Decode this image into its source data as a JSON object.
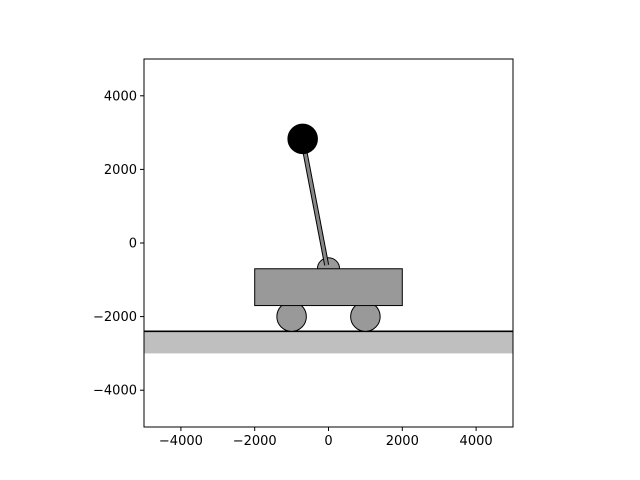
{
  "axes": {
    "xlim": [
      -5000,
      5000
    ],
    "ylim": [
      -5000,
      5000
    ],
    "x_ticks": [
      {
        "value": -4000,
        "label": "−4000"
      },
      {
        "value": -2000,
        "label": "−2000"
      },
      {
        "value": 0,
        "label": "0"
      },
      {
        "value": 2000,
        "label": "2000"
      },
      {
        "value": 4000,
        "label": "4000"
      }
    ],
    "y_ticks": [
      {
        "value": 4000,
        "label": "4000"
      },
      {
        "value": 2000,
        "label": "2000"
      },
      {
        "value": 0,
        "label": "0"
      },
      {
        "value": -2000,
        "label": "−2000"
      },
      {
        "value": -4000,
        "label": "−4000"
      }
    ]
  },
  "scene": {
    "ground_surface_y": -2400,
    "ground_band": {
      "y_top": -2400,
      "y_bottom": -3000
    },
    "cart": {
      "x_left": -2000,
      "x_right": 2000,
      "y_top": -700,
      "y_bottom": -1700
    },
    "pivot": {
      "x": 0,
      "y": -700,
      "r": 300
    },
    "wheels": [
      {
        "x": -1000,
        "y": -2000,
        "r": 400
      },
      {
        "x": 1000,
        "y": -2000,
        "r": 400
      }
    ],
    "pole": {
      "x1": -700,
      "y1": 2800,
      "x2": -50,
      "y2": -600
    },
    "bob": {
      "x": -700,
      "y": 2830,
      "r": 400
    }
  },
  "colors": {
    "cart_fill": "#999999",
    "wheel_fill": "#999999",
    "pivot_fill": "#999999",
    "pole_fill": "#888888",
    "bob_fill": "#000000",
    "ground_fill": "#bfbfbf",
    "line": "#000000"
  }
}
